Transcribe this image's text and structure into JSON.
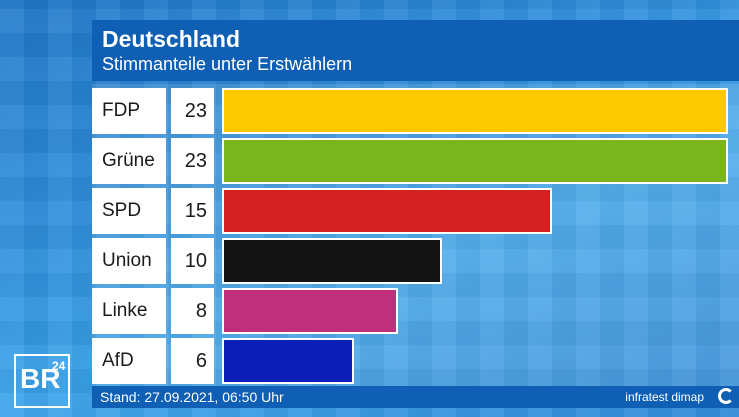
{
  "header": {
    "title": "Deutschland",
    "subtitle": "Stimmanteile unter Erstwählern"
  },
  "chart_data": {
    "type": "bar",
    "orientation": "horizontal",
    "title": "Deutschland",
    "subtitle": "Stimmanteile unter Erstwählern",
    "categories": [
      "FDP",
      "Grüne",
      "SPD",
      "Union",
      "Linke",
      "AfD"
    ],
    "values": [
      23,
      23,
      15,
      10,
      8,
      6
    ],
    "colors": [
      "#fcc900",
      "#7ab51d",
      "#d32020",
      "#141414",
      "#c0307a",
      "#0b1fb8"
    ],
    "xlim": [
      0,
      23
    ]
  },
  "footer": {
    "stand": "Stand: 27.09.2021, 06:50 Uhr",
    "source": "infratest dimap"
  },
  "logo": {
    "text": "BR",
    "number": "24"
  }
}
